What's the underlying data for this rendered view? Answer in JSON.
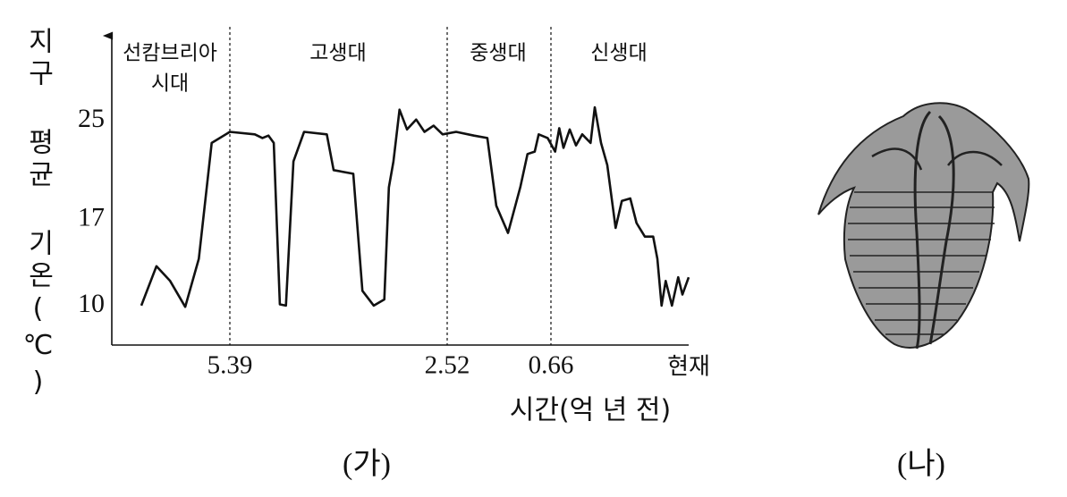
{
  "chart_data": {
    "type": "line",
    "y_label": "지구 평균 기온(℃)",
    "x_label": "시간(억 년 전)",
    "caption": "(가)",
    "eras": [
      [
        "선캄브리아",
        "시대"
      ],
      [
        "고생대"
      ],
      [
        "중생대"
      ],
      [
        "신생대"
      ]
    ],
    "xlim": [
      6.95,
      0
    ],
    "xticks": [
      5.39,
      2.52,
      0.66,
      {
        "value": 0,
        "label": "현재"
      }
    ],
    "ylim": [
      6.8,
      31.9
    ],
    "yticks": [
      10,
      17,
      25
    ],
    "color": "#111111",
    "x": [
      6.56,
      6.36,
      6.18,
      5.98,
      5.8,
      5.63,
      5.39,
      5.06,
      4.96,
      4.88,
      4.81,
      4.73,
      4.65,
      4.55,
      4.41,
      4.11,
      4.02,
      3.76,
      3.64,
      3.49,
      3.35,
      3.29,
      3.23,
      3.15,
      3.05,
      2.93,
      2.82,
      2.7,
      2.58,
      2.36,
      2.04,
      1.8,
      1.64,
      1.43,
      1.21,
      1.08,
      0.95,
      0.88,
      0.72,
      0.64,
      0.62,
      0.6,
      0.57,
      0.54,
      0.51,
      0.47,
      0.45,
      0.42,
      0.39,
      0.35,
      0.32,
      0.28,
      0.25,
      0.21,
      0.17,
      0.15,
      0.13,
      0.11,
      0.08,
      0.05,
      0.03,
      0
    ],
    "values": [
      10,
      13.2,
      12,
      9.9,
      13.8,
      23.2,
      24.1,
      23.9,
      23.6,
      23.8,
      23.2,
      10.1,
      10,
      21.7,
      24.1,
      23.9,
      21,
      20.7,
      11.2,
      10,
      10.5,
      19.6,
      21.7,
      25.9,
      24.3,
      25.1,
      24.1,
      24.6,
      23.9,
      24.1,
      23.8,
      23.6,
      18.1,
      15.9,
      19.6,
      22.3,
      22.5,
      23.9,
      23.6,
      22.5,
      24.4,
      22.8,
      24.3,
      23,
      23.9,
      23.2,
      26.1,
      23.2,
      21.4,
      16.3,
      18.5,
      18.7,
      16.7,
      15.6,
      15.6,
      13.8,
      10,
      12,
      10,
      12.3,
      10.9,
      12.3
    ]
  },
  "figure_b": {
    "caption": "(나)"
  }
}
